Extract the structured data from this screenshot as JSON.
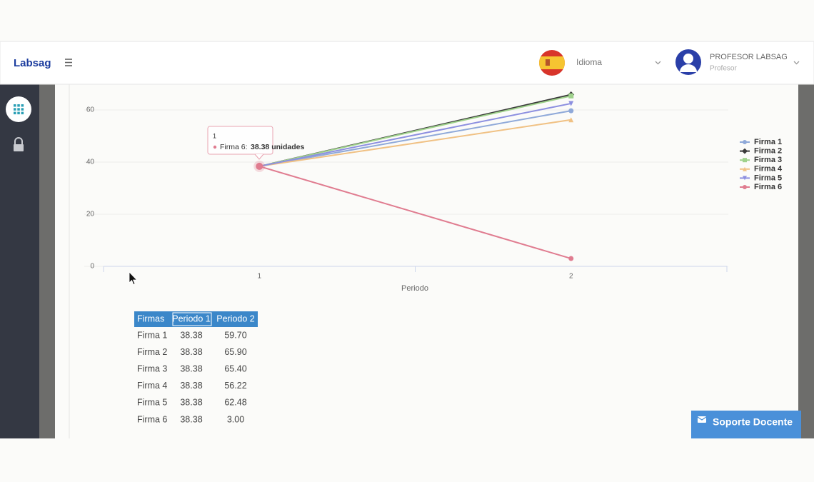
{
  "header": {
    "brand": "Labsag",
    "language": "Idioma",
    "user_name": "PROFESOR LABSAG",
    "user_role": "Profesor"
  },
  "chart_data": {
    "type": "line",
    "x_label": "Periodo",
    "categories": [
      "1",
      "2"
    ],
    "series": [
      {
        "name": "Firma 1",
        "color": "#8fa9d9",
        "marker": "circle",
        "values": [
          38.38,
          59.7
        ]
      },
      {
        "name": "Firma 2",
        "color": "#3a3a3a",
        "marker": "diamond",
        "values": [
          38.38,
          65.9
        ]
      },
      {
        "name": "Firma 3",
        "color": "#9fd28c",
        "marker": "square",
        "values": [
          38.38,
          65.4
        ]
      },
      {
        "name": "Firma 4",
        "color": "#f0c184",
        "marker": "triangle",
        "values": [
          38.38,
          56.22
        ]
      },
      {
        "name": "Firma 5",
        "color": "#8c8fe0",
        "marker": "triangle-down",
        "values": [
          38.38,
          62.48
        ]
      },
      {
        "name": "Firma 6",
        "color": "#e07c90",
        "marker": "circle",
        "values": [
          38.38,
          3.0
        ]
      }
    ],
    "ylim": [
      0,
      70
    ],
    "yticks": [
      0,
      20,
      40,
      60
    ],
    "grid": true,
    "legend": "right",
    "tooltip": {
      "title": "1",
      "label": "Firma 6:",
      "value": "38.38 unidades"
    }
  },
  "table": {
    "header": [
      "Firmas",
      "Periodo 1",
      "Periodo 2"
    ],
    "rows": [
      [
        "Firma 1",
        "38.38",
        "59.70"
      ],
      [
        "Firma 2",
        "38.38",
        "65.90"
      ],
      [
        "Firma 3",
        "38.38",
        "65.40"
      ],
      [
        "Firma 4",
        "38.38",
        "56.22"
      ],
      [
        "Firma 5",
        "38.38",
        "62.48"
      ],
      [
        "Firma 6",
        "38.38",
        "3.00"
      ]
    ]
  },
  "support_button": "Soporte Docente"
}
